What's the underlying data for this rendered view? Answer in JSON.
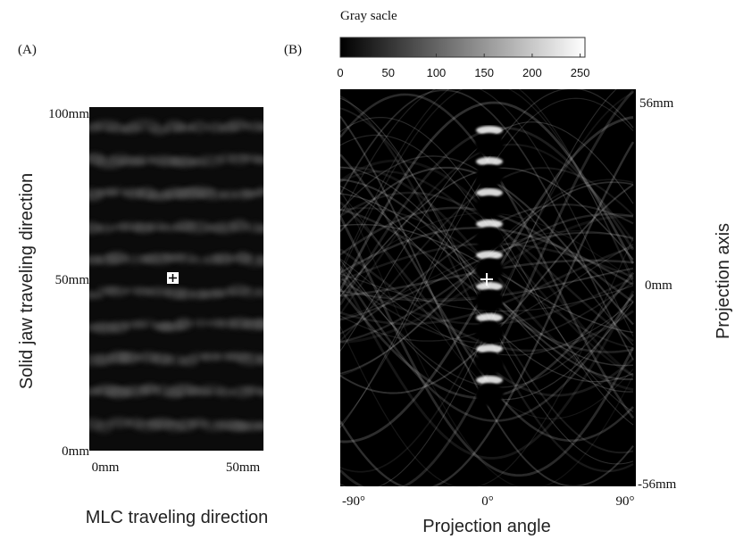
{
  "panel_a": {
    "label": "(A)",
    "y_axis_label": "Solid jaw traveling direction",
    "x_axis_label": "MLC traveling direction",
    "y_ticks": [
      "100mm",
      "50mm",
      "0mm"
    ],
    "x_ticks": [
      "0mm",
      "50mm"
    ]
  },
  "panel_b": {
    "label": "(B)",
    "y_axis_label": "Projection axis",
    "x_axis_label": "Projection angle",
    "y_ticks": [
      "56mm",
      "0mm",
      "-56mm"
    ],
    "x_ticks": [
      "-90°",
      "0°",
      "90°"
    ],
    "colorbar": {
      "title": "Gray sacle",
      "range": [
        0,
        255
      ],
      "ticks": [
        0,
        50,
        100,
        150,
        200,
        250
      ]
    }
  }
}
